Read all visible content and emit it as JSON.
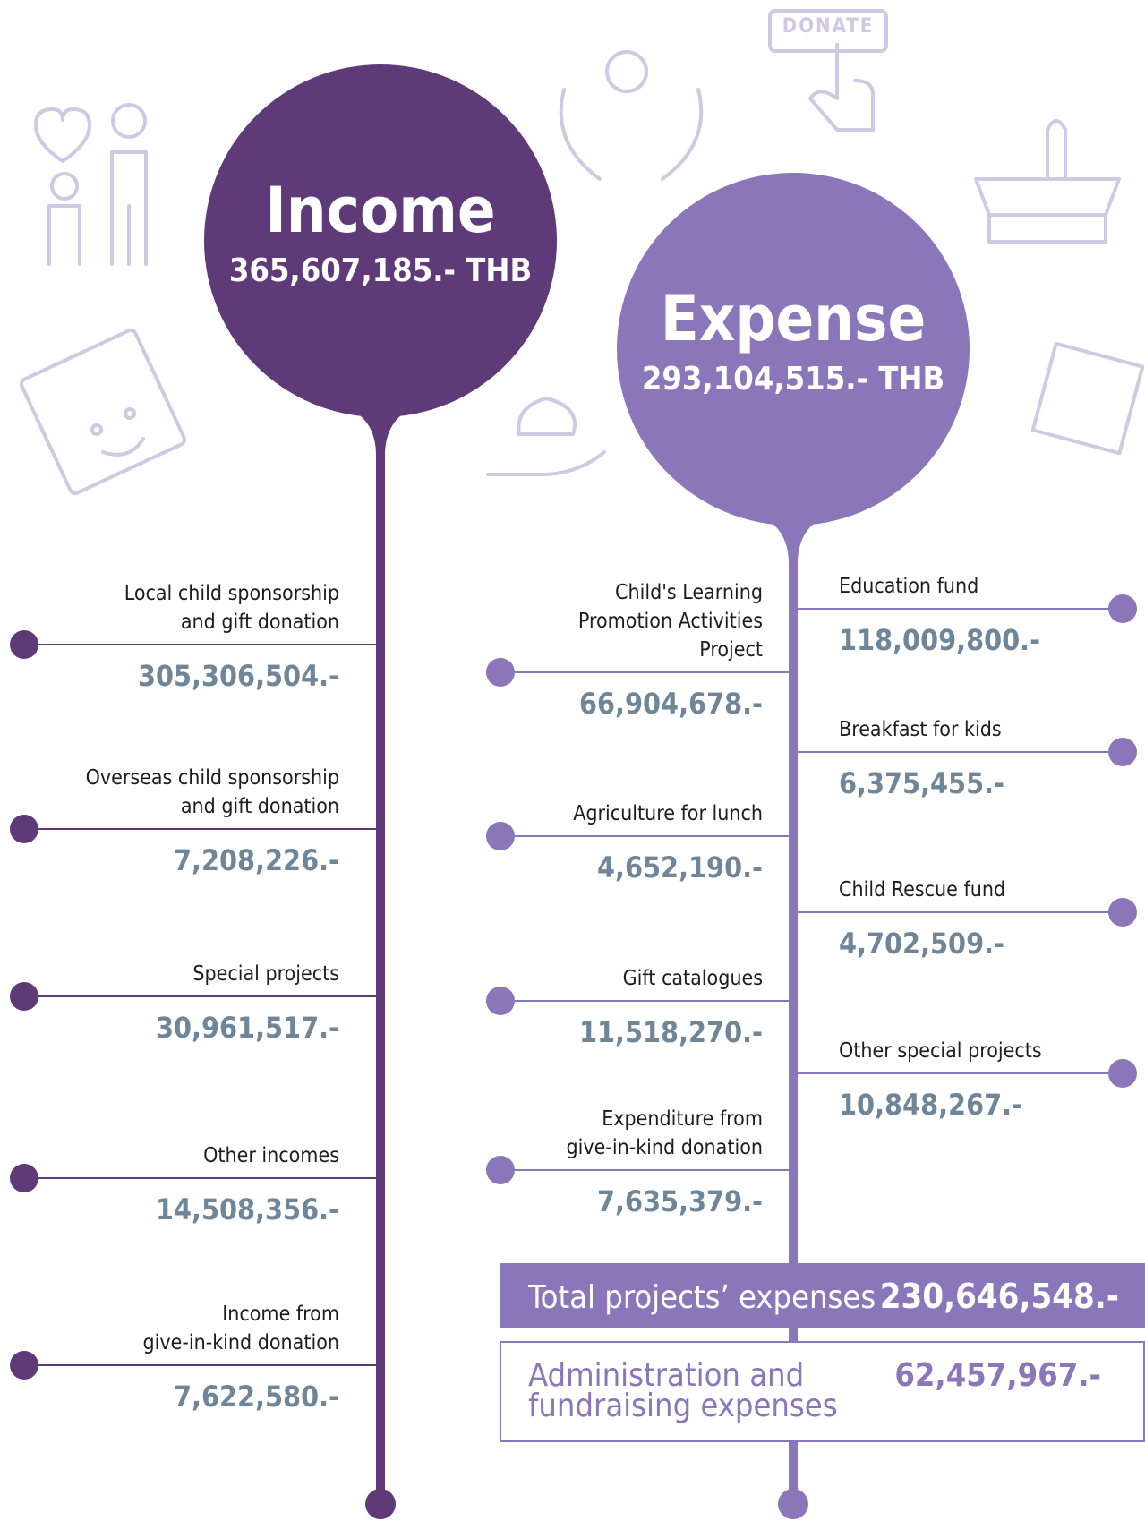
{
  "donate_button": "DONATE",
  "income": {
    "title": "Income",
    "amount": "365,607,185.- THB",
    "items": [
      {
        "lines": [
          "Local child sponsorship",
          "and gift donation"
        ],
        "value": "305,306,504.-"
      },
      {
        "lines": [
          "Overseas child sponsorship",
          "and gift donation"
        ],
        "value": "7,208,226.-"
      },
      {
        "lines": [
          "Special projects"
        ],
        "value": "30,961,517.-"
      },
      {
        "lines": [
          "Other incomes"
        ],
        "value": "14,508,356.-"
      },
      {
        "lines": [
          "Income from",
          "give-in-kind donation"
        ],
        "value": "7,622,580.-"
      }
    ]
  },
  "expense": {
    "title": "Expense",
    "amount": "293,104,515.- THB",
    "left_items": [
      {
        "lines": [
          "Child's Learning",
          "Promotion Activities",
          "Project"
        ],
        "value": "66,904,678.-"
      },
      {
        "lines": [
          "Agriculture for lunch"
        ],
        "value": "4,652,190.-"
      },
      {
        "lines": [
          "Gift catalogues"
        ],
        "value": "11,518,270.-"
      },
      {
        "lines": [
          "Expenditure from",
          "give-in-kind donation"
        ],
        "value": "7,635,379.-"
      }
    ],
    "right_items": [
      {
        "lines": [
          "Education fund"
        ],
        "value": "118,009,800.-"
      },
      {
        "lines": [
          "Breakfast for kids"
        ],
        "value": "6,375,455.-"
      },
      {
        "lines": [
          "Child Rescue fund"
        ],
        "value": "4,702,509.-"
      },
      {
        "lines": [
          "Other special projects"
        ],
        "value": "10,848,267.-"
      }
    ]
  },
  "total_projects": {
    "label": "Total projects’ expenses",
    "value": "230,646,548.-"
  },
  "administration": {
    "lines": [
      "Administration and",
      "fundraising expenses"
    ],
    "value": "62,457,967.-"
  }
}
